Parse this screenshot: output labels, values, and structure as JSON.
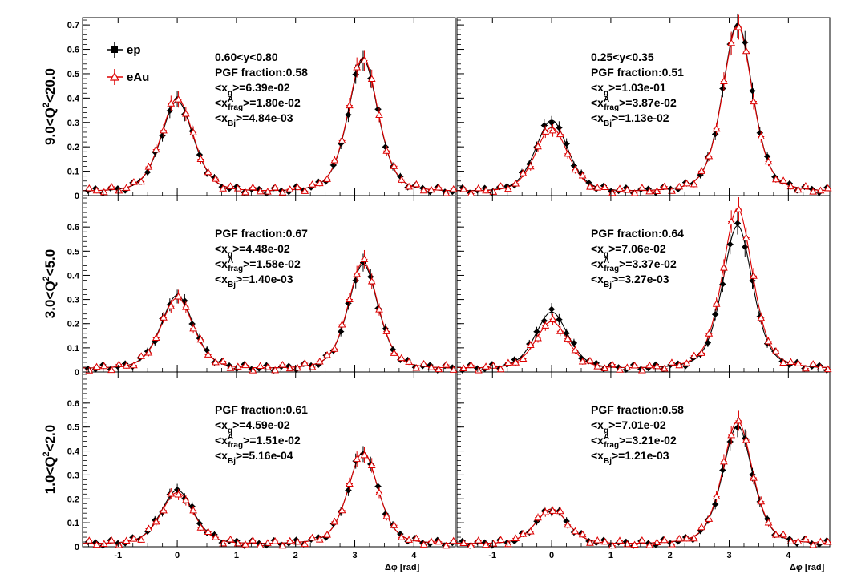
{
  "chart_data": {
    "type": "scatter",
    "layout": "3x2 grid",
    "xlabel": "Δφ [rad]",
    "xlim": [
      -1.6,
      4.7
    ],
    "xticks": [
      -1,
      0,
      1,
      2,
      3,
      4
    ],
    "legend": {
      "placement": "top-left",
      "entries": [
        {
          "name": "ep",
          "color": "#000000",
          "marker": "filled square"
        },
        {
          "name": "eAu",
          "color": "#dd0000",
          "marker": "open triangle"
        }
      ]
    },
    "rows": [
      {
        "label": "9.0<Q²<20.0",
        "label_main": "9.0<Q",
        "label_rest": "<20.0",
        "ylim": [
          0,
          0.73
        ],
        "yticks": [
          0,
          0.1,
          0.2,
          0.3,
          0.4,
          0.5,
          0.6,
          0.7
        ]
      },
      {
        "label": "3.0<Q²<5.0",
        "label_main": "3.0<Q",
        "label_rest": "<5.0",
        "ylim": [
          0,
          0.73
        ],
        "yticks": [
          0,
          0.1,
          0.2,
          0.3,
          0.4,
          0.5,
          0.6
        ]
      },
      {
        "label": "1.0<Q²<2.0",
        "label_main": "1.0<Q",
        "label_rest": "<2.0",
        "ylim": [
          0,
          0.73
        ],
        "yticks": [
          0,
          0.1,
          0.2,
          0.3,
          0.4,
          0.5,
          0.6
        ]
      }
    ],
    "panels": [
      {
        "row": 0,
        "col": 0,
        "y_range": "0.60<y<0.80",
        "pgf": "PGF fraction:0.58",
        "xg": "6.39e-02",
        "xfrag": "1.80e-02",
        "xbj": "4.84e-03",
        "series": [
          {
            "name": "ep",
            "near_peak": 0.38,
            "away_peak": 0.55,
            "base": 0.01
          },
          {
            "name": "eAu",
            "near_peak": 0.39,
            "away_peak": 0.56,
            "base": 0.01
          }
        ]
      },
      {
        "row": 0,
        "col": 1,
        "y_range": "0.25<y<0.35",
        "pgf": "PGF fraction:0.51",
        "xg": "1.03e-01",
        "xfrag": "3.87e-02",
        "xbj": "1.13e-02",
        "series": [
          {
            "name": "ep",
            "near_peak": 0.3,
            "away_peak": 0.7,
            "base": 0.01
          },
          {
            "name": "eAu",
            "near_peak": 0.27,
            "away_peak": 0.69,
            "base": 0.01
          }
        ]
      },
      {
        "row": 1,
        "col": 0,
        "y_range": "",
        "pgf": "PGF fraction:0.67",
        "xg": "4.48e-02",
        "xfrag": "1.58e-02",
        "xbj": "1.40e-03",
        "series": [
          {
            "name": "ep",
            "near_peak": 0.31,
            "away_peak": 0.44,
            "base": 0.01
          },
          {
            "name": "eAu",
            "near_peak": 0.3,
            "away_peak": 0.45,
            "base": 0.01
          }
        ]
      },
      {
        "row": 1,
        "col": 1,
        "y_range": "",
        "pgf": "PGF fraction:0.64",
        "xg": "7.06e-02",
        "xfrag": "3.37e-02",
        "xbj": "3.27e-03",
        "series": [
          {
            "name": "ep",
            "near_peak": 0.24,
            "away_peak": 0.6,
            "base": 0.01
          },
          {
            "name": "eAu",
            "near_peak": 0.2,
            "away_peak": 0.67,
            "base": 0.01
          }
        ]
      },
      {
        "row": 2,
        "col": 0,
        "y_range": "",
        "pgf": "PGF fraction:0.61",
        "xg": "4.59e-02",
        "xfrag": "1.51e-02",
        "xbj": "5.16e-04",
        "series": [
          {
            "name": "ep",
            "near_peak": 0.23,
            "away_peak": 0.39,
            "base": 0.01
          },
          {
            "name": "eAu",
            "near_peak": 0.22,
            "away_peak": 0.39,
            "base": 0.01
          }
        ]
      },
      {
        "row": 2,
        "col": 1,
        "y_range": "",
        "pgf": "PGF fraction:0.58",
        "xg": "7.01e-02",
        "xfrag": "3.21e-02",
        "xbj": "1.21e-03",
        "series": [
          {
            "name": "ep",
            "near_peak": 0.15,
            "away_peak": 0.5,
            "base": 0.01
          },
          {
            "name": "eAu",
            "near_peak": 0.15,
            "away_peak": 0.52,
            "base": 0.01
          }
        ]
      }
    ],
    "annotation_labels": {
      "xg_prefix": "<x",
      "xg_sub": "g",
      "xfrag_prefix": "<x",
      "xfrag_sup": "A",
      "xfrag_sub": "frag",
      "xbj_prefix": "<x",
      "xbj_sub": "Bj",
      "eq": ">="
    },
    "grid": false
  }
}
